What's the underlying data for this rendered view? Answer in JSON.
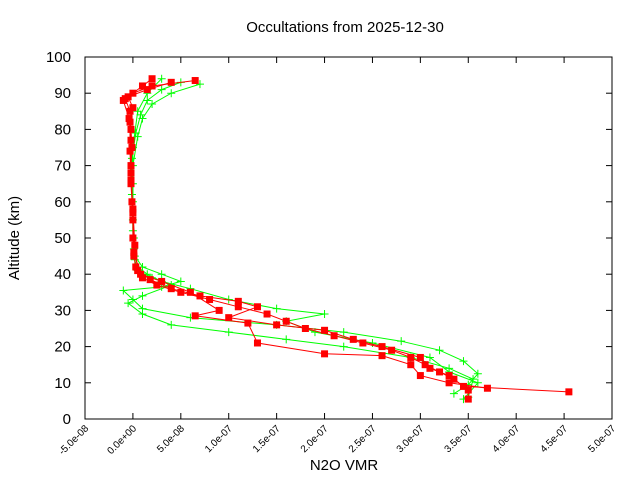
{
  "chart_data": {
    "type": "scatter",
    "title": "Occultations from 2025-12-30",
    "xlabel": "N2O VMR",
    "ylabel": "Altitude (km)",
    "xlim": [
      -5e-08,
      5e-07
    ],
    "ylim": [
      0,
      100
    ],
    "grid": false,
    "x_ticks": [
      "-5.0e-08",
      "0.0e+00",
      "5.0e-08",
      "1.0e-07",
      "1.5e-07",
      "2.0e-07",
      "2.5e-07",
      "3.0e-07",
      "3.5e-07",
      "4.0e-07",
      "4.5e-07",
      "5.0e-07"
    ],
    "x_tick_values": [
      -5e-08,
      0,
      5e-08,
      1e-07,
      1.5e-07,
      2e-07,
      2.5e-07,
      3e-07,
      3.5e-07,
      4e-07,
      4.5e-07,
      5e-07
    ],
    "y_ticks": [
      "0",
      "10",
      "20",
      "30",
      "40",
      "50",
      "60",
      "70",
      "80",
      "90",
      "100"
    ],
    "y_tick_values": [
      0,
      10,
      20,
      30,
      40,
      50,
      60,
      70,
      80,
      90,
      100
    ],
    "series": [
      {
        "color": "#00ff00",
        "marker": "cross",
        "profiles": [
          [
            [
              7e-08,
              92.5
            ],
            [
              4e-08,
              90
            ],
            [
              2e-08,
              87
            ],
            [
              1e-08,
              83
            ],
            [
              5e-09,
              78
            ],
            [
              0,
              70
            ],
            [
              0,
              60
            ],
            [
              1e-09,
              50
            ],
            [
              2e-09,
              45
            ],
            [
              1e-08,
              42
            ],
            [
              3e-08,
              40
            ],
            [
              5e-08,
              38
            ],
            [
              3e-08,
              36.5
            ],
            [
              -1e-08,
              35.5
            ],
            [
              0,
              33
            ],
            [
              1e-08,
              30.5
            ],
            [
              6e-08,
              28
            ],
            [
              1.5e-07,
              26
            ],
            [
              2.2e-07,
              24
            ],
            [
              2.8e-07,
              21.5
            ],
            [
              3.2e-07,
              19
            ],
            [
              3.45e-07,
              16
            ],
            [
              3.6e-07,
              12.5
            ],
            [
              3.5e-07,
              9.5
            ],
            [
              3.35e-07,
              7
            ]
          ],
          [
            [
              5e-08,
              93
            ],
            [
              3e-08,
              91
            ],
            [
              1.5e-08,
              88
            ],
            [
              8e-09,
              84
            ],
            [
              3e-09,
              79
            ],
            [
              -1e-09,
              72
            ],
            [
              -1e-09,
              62
            ],
            [
              0,
              52
            ],
            [
              2e-09,
              44
            ],
            [
              5e-09,
              41
            ],
            [
              2e-08,
              39
            ],
            [
              4e-08,
              37
            ],
            [
              1e-08,
              34
            ],
            [
              -5e-09,
              32
            ],
            [
              1e-08,
              29
            ],
            [
              4e-08,
              26
            ],
            [
              1e-07,
              24
            ],
            [
              1.6e-07,
              22
            ],
            [
              2.2e-07,
              20
            ],
            [
              2.9e-07,
              17
            ],
            [
              3.3e-07,
              14
            ],
            [
              3.55e-07,
              11
            ],
            [
              3.5e-07,
              6
            ]
          ],
          [
            [
              3e-08,
              94
            ],
            [
              1.5e-08,
              90
            ],
            [
              5e-09,
              85
            ],
            [
              0,
              75
            ],
            [
              0,
              65
            ],
            [
              0,
              55
            ],
            [
              1e-09,
              47
            ],
            [
              5e-09,
              42
            ],
            [
              1.5e-08,
              40
            ],
            [
              3e-08,
              38
            ],
            [
              6e-08,
              36
            ],
            [
              1e-07,
              33
            ],
            [
              1.5e-07,
              30.5
            ],
            [
              2e-07,
              29
            ],
            [
              1.6e-07,
              27
            ],
            [
              1.9e-07,
              24
            ],
            [
              2.5e-07,
              21
            ],
            [
              3.1e-07,
              17
            ],
            [
              3.3e-07,
              13
            ],
            [
              3.6e-07,
              10
            ],
            [
              3.45e-07,
              5.5
            ]
          ]
        ]
      },
      {
        "color": "#ff0000",
        "marker": "square",
        "profiles": [
          [
            [
              6.5e-08,
              93.5
            ],
            [
              2e-08,
              92
            ],
            [
              0,
              90
            ],
            [
              -8e-09,
              88.5
            ],
            [
              -3e-09,
              85
            ],
            [
              -2e-09,
              80
            ],
            [
              -1e-09,
              75
            ],
            [
              -2e-09,
              70
            ],
            [
              -2e-09,
              65
            ],
            [
              -1e-09,
              60
            ],
            [
              0,
              55
            ],
            [
              0,
              50
            ],
            [
              1e-09,
              45
            ],
            [
              3e-09,
              42
            ],
            [
              1e-08,
              39
            ],
            [
              2.5e-08,
              37
            ],
            [
              5e-08,
              35
            ],
            [
              8e-08,
              33
            ],
            [
              1.1e-07,
              31
            ],
            [
              1.4e-07,
              29
            ],
            [
              1.6e-07,
              27
            ],
            [
              1.8e-07,
              25
            ],
            [
              2.1e-07,
              23
            ],
            [
              2.4e-07,
              21
            ],
            [
              2.7e-07,
              19
            ],
            [
              2.9e-07,
              17
            ],
            [
              3.05e-07,
              15
            ],
            [
              3.2e-07,
              13
            ],
            [
              3.35e-07,
              11
            ],
            [
              3.45e-07,
              9
            ],
            [
              4.55e-07,
              7.5
            ]
          ],
          [
            [
              4e-08,
              93
            ],
            [
              1.5e-08,
              91
            ],
            [
              -5e-09,
              89
            ],
            [
              0,
              86
            ],
            [
              -3e-09,
              82
            ],
            [
              -3e-09,
              74
            ],
            [
              -2e-09,
              66
            ],
            [
              0,
              58
            ],
            [
              2e-09,
              48
            ],
            [
              5e-09,
              41
            ],
            [
              1.8e-08,
              38.5
            ],
            [
              4e-08,
              36
            ],
            [
              7e-08,
              34
            ],
            [
              1.1e-07,
              32.5
            ],
            [
              1.3e-07,
              31
            ],
            [
              1e-07,
              28
            ],
            [
              1.5e-07,
              26
            ],
            [
              2e-07,
              24.5
            ],
            [
              2.3e-07,
              22
            ],
            [
              2.6e-07,
              20
            ],
            [
              3e-07,
              17
            ],
            [
              3.1e-07,
              14
            ],
            [
              3.3e-07,
              12
            ],
            [
              3.5e-07,
              8
            ],
            [
              3.5e-07,
              5.5
            ]
          ],
          [
            [
              2e-08,
              94
            ],
            [
              1e-08,
              92
            ],
            [
              -1e-08,
              88
            ],
            [
              -4e-09,
              83
            ],
            [
              -2e-09,
              77
            ],
            [
              -2e-09,
              68
            ],
            [
              0,
              57
            ],
            [
              1e-09,
              46
            ],
            [
              8e-09,
              40
            ],
            [
              3e-08,
              38
            ],
            [
              6e-08,
              35
            ],
            [
              9e-08,
              30
            ],
            [
              6.5e-08,
              28.5
            ],
            [
              1.2e-07,
              26.5
            ],
            [
              1.3e-07,
              21
            ],
            [
              2e-07,
              18
            ],
            [
              2.6e-07,
              17.5
            ],
            [
              2.9e-07,
              15
            ],
            [
              3e-07,
              12
            ],
            [
              3.3e-07,
              10
            ],
            [
              3.7e-07,
              8.5
            ]
          ]
        ]
      }
    ]
  }
}
